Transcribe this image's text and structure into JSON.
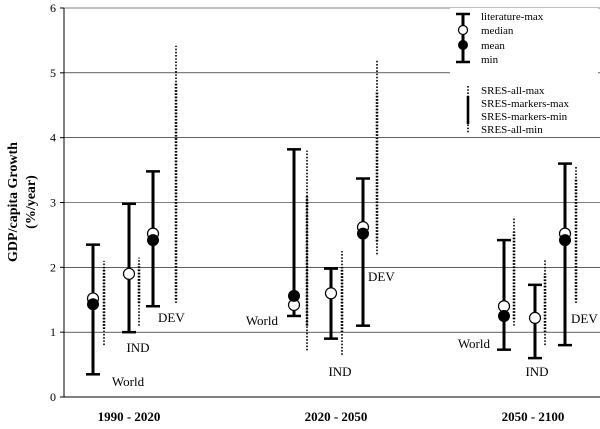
{
  "chart_data": {
    "type": "errorbar",
    "ylabel_line1": "GDP/capita Growth",
    "ylabel_line2": "(%/year)",
    "ylim": [
      0,
      6
    ],
    "yticks": [
      0,
      1,
      2,
      3,
      4,
      5,
      6
    ],
    "grid": "horizontal",
    "legend": {
      "position": "top-right",
      "items": [
        "literature-max",
        "median",
        "mean",
        "min"
      ],
      "sres_items": [
        "SRES-all-max",
        "SRES-markers-max",
        "SRES-markers-min",
        "SRES-all-min"
      ]
    },
    "periods": [
      "1990 - 2020",
      "2020 - 2050",
      "2050 - 2100"
    ],
    "regions": [
      "World",
      "IND",
      "DEV"
    ],
    "groups": [
      {
        "period": "1990 - 2020",
        "region": "World",
        "literature": {
          "min": 0.35,
          "max": 2.35,
          "median": 1.52,
          "mean": 1.43
        },
        "sres": {
          "all_min": 0.8,
          "markers_min": 1.05,
          "markers_max": 2.0,
          "all_max": 2.1
        }
      },
      {
        "period": "1990 - 2020",
        "region": "IND",
        "literature": {
          "min": 1.0,
          "max": 2.98,
          "median": 1.9,
          "mean": null
        },
        "sres": {
          "all_min": 1.1,
          "markers_min": 1.45,
          "markers_max": 2.05,
          "all_max": 2.15
        }
      },
      {
        "period": "1990 - 2020",
        "region": "DEV",
        "literature": {
          "min": 1.4,
          "max": 3.48,
          "median": 2.52,
          "mean": 2.42
        },
        "sres": {
          "all_min": 1.45,
          "markers_min": 1.5,
          "markers_max": 4.85,
          "all_max": 5.42
        }
      },
      {
        "period": "2020 - 2050",
        "region": "World",
        "literature": {
          "min": 1.25,
          "max": 3.82,
          "median": 1.42,
          "mean": 1.56
        },
        "sres": {
          "all_min": 0.72,
          "markers_min": 1.1,
          "markers_max": 3.1,
          "all_max": 3.8
        }
      },
      {
        "period": "2020 - 2050",
        "region": "IND",
        "literature": {
          "min": 0.9,
          "max": 1.98,
          "median": 1.6,
          "mean": null
        },
        "sres": {
          "all_min": 0.65,
          "markers_min": 1.0,
          "markers_max": 2.0,
          "all_max": 2.25
        }
      },
      {
        "period": "2020 - 2050",
        "region": "DEV",
        "literature": {
          "min": 1.1,
          "max": 3.37,
          "median": 2.62,
          "mean": 2.52
        },
        "sres": {
          "all_min": 2.2,
          "markers_min": 2.4,
          "markers_max": 4.7,
          "all_max": 5.2
        }
      },
      {
        "period": "2050 - 2100",
        "region": "World",
        "literature": {
          "min": 0.73,
          "max": 2.42,
          "median": 1.4,
          "mean": 1.25
        },
        "sres": {
          "all_min": 1.1,
          "markers_min": 1.2,
          "markers_max": 2.55,
          "all_max": 2.78
        }
      },
      {
        "period": "2050 - 2100",
        "region": "IND",
        "literature": {
          "min": 0.6,
          "max": 1.73,
          "median": 1.22,
          "mean": null
        },
        "sres": {
          "all_min": 0.8,
          "markers_min": 1.0,
          "markers_max": 1.9,
          "all_max": 2.12
        }
      },
      {
        "period": "2050 - 2100",
        "region": "DEV",
        "literature": {
          "min": 0.8,
          "max": 3.6,
          "median": 2.52,
          "mean": 2.42
        },
        "sres": {
          "all_min": 1.45,
          "markers_min": 1.5,
          "markers_max": 3.35,
          "all_max": 3.55
        }
      }
    ]
  },
  "colors": {
    "ink": "#000000",
    "grid": "#000000",
    "background": "#ffffff",
    "marker_open": "#ffffff"
  }
}
